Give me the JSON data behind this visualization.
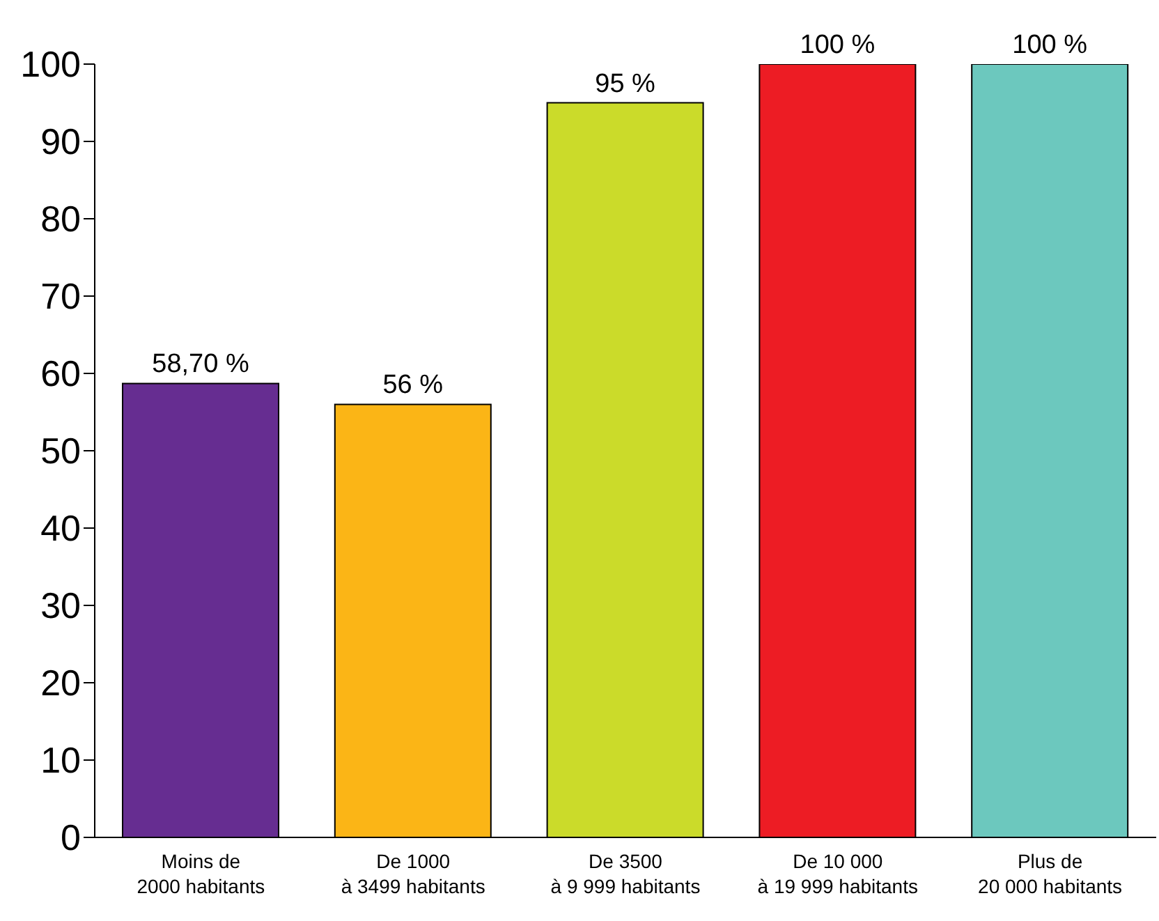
{
  "chart_data": {
    "type": "bar",
    "categories": [
      "Moins de\n2000 habitants",
      "De 1000\nà 3499 habitants",
      "De 3500\nà 9 999 habitants",
      "De 10 000\nà 19 999 habitants",
      "Plus de\n20 000 habitants"
    ],
    "values": [
      58.7,
      56,
      95,
      100,
      100
    ],
    "colors": [
      "#662d91",
      "#fbb516",
      "#cbdb2a",
      "#ed1c24",
      "#6cc8be"
    ],
    "value_labels": [
      "58,70 %",
      "56 %",
      "95 %",
      "100 %",
      "100 %"
    ],
    "ylim": [
      0,
      100
    ],
    "yticks": [
      0,
      10,
      20,
      30,
      40,
      50,
      60,
      70,
      80,
      90,
      100
    ],
    "grid": false,
    "legend": false
  }
}
